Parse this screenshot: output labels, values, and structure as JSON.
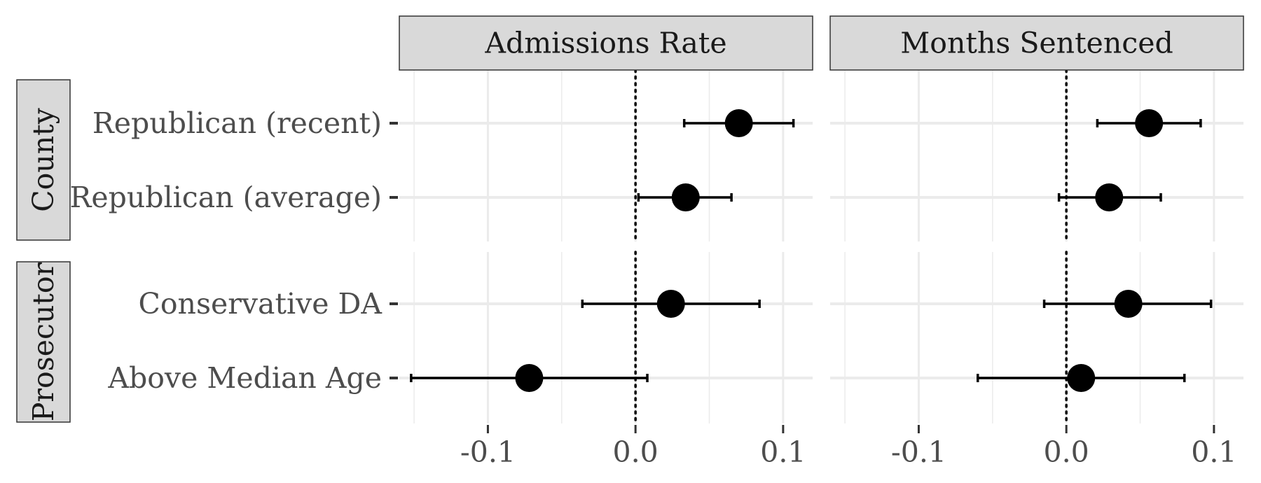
{
  "chart_data": {
    "type": "scatter",
    "subtype": "coefficient-plot-with-error-bars",
    "facet_columns": [
      "Admissions Rate",
      "Months Sentenced"
    ],
    "facet_rows": [
      {
        "label": "County",
        "categories": [
          "Republican (recent)",
          "Republican (average)"
        ]
      },
      {
        "label": "Prosecutor",
        "categories": [
          "Conservative DA",
          "Above Median Age"
        ]
      }
    ],
    "x_ticks": [
      "-0.1",
      "0.0",
      "0.1"
    ],
    "xlim": [
      -0.16,
      0.12
    ],
    "reference_line": {
      "x": 0.0,
      "style": "dotted"
    },
    "grid": true,
    "points": [
      {
        "column": "Admissions Rate",
        "category": "Republican (recent)",
        "estimate": 0.07,
        "lower": 0.033,
        "upper": 0.107
      },
      {
        "column": "Admissions Rate",
        "category": "Republican (average)",
        "estimate": 0.034,
        "lower": 0.002,
        "upper": 0.065
      },
      {
        "column": "Admissions Rate",
        "category": "Conservative DA",
        "estimate": 0.024,
        "lower": -0.036,
        "upper": 0.084
      },
      {
        "column": "Admissions Rate",
        "category": "Above Median Age",
        "estimate": -0.072,
        "lower": -0.152,
        "upper": 0.008
      },
      {
        "column": "Months Sentenced",
        "category": "Republican (recent)",
        "estimate": 0.056,
        "lower": 0.021,
        "upper": 0.091
      },
      {
        "column": "Months Sentenced",
        "category": "Republican (average)",
        "estimate": 0.029,
        "lower": -0.005,
        "upper": 0.064
      },
      {
        "column": "Months Sentenced",
        "category": "Conservative DA",
        "estimate": 0.042,
        "lower": -0.015,
        "upper": 0.098
      },
      {
        "column": "Months Sentenced",
        "category": "Above Median Age",
        "estimate": 0.01,
        "lower": -0.06,
        "upper": 0.08
      }
    ],
    "colors": {
      "point": "#000000",
      "strip_fill": "#d9d9d9",
      "strip_border": "#333333",
      "grid": "#ebebeb",
      "text": "#4d4d4d"
    }
  }
}
